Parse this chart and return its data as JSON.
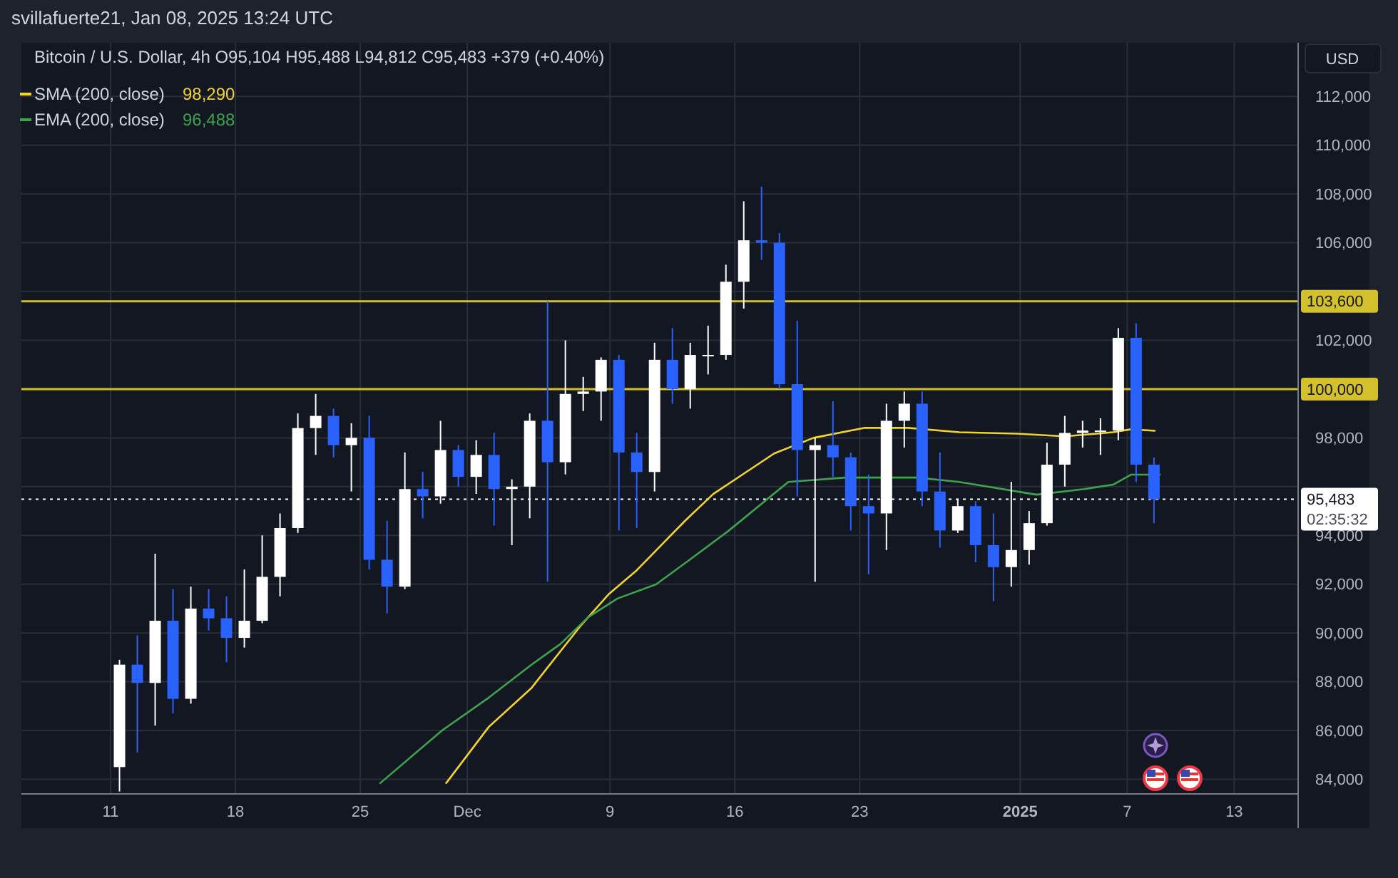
{
  "chart_data": {
    "type": "candlestick",
    "title": "Bitcoin / U.S. Dollar, 4h  O95,104  H95,488  L94,812  C95,483  +379 (+0.40%)",
    "ylabel": "USD",
    "annotations": [
      "svillafuerte21, Jan 08, 2025 13:24 UTC",
      "02:35:32",
      "98,290",
      "96,488"
    ],
    "x": [
      "2024-11-11T12:00",
      "2024-11-12T12:00",
      "2024-11-13T12:00",
      "2024-11-14T12:00",
      "2024-11-15T12:00",
      "2024-11-16T12:00",
      "2024-11-17T12:00",
      "2024-11-18T12:00",
      "2024-11-19T12:00",
      "2024-11-20T12:00",
      "2024-11-21T12:00",
      "2024-11-22T12:00",
      "2024-11-23T12:00",
      "2024-11-24T12:00",
      "2024-11-25T12:00",
      "2024-11-26T12:00",
      "2024-11-27T12:00",
      "2024-11-28T12:00",
      "2024-11-29T12:00",
      "2024-11-30T12:00",
      "2024-12-01T12:00",
      "2024-12-02T12:00",
      "2024-12-03T12:00",
      "2024-12-04T12:00",
      "2024-12-05T12:00",
      "2024-12-06T12:00",
      "2024-12-07T12:00",
      "2024-12-08T12:00",
      "2024-12-09T12:00",
      "2024-12-10T12:00",
      "2024-12-11T12:00",
      "2024-12-12T12:00",
      "2024-12-13T12:00",
      "2024-12-14T12:00",
      "2024-12-15T12:00",
      "2024-12-16T12:00",
      "2024-12-17T12:00",
      "2024-12-18T12:00",
      "2024-12-19T12:00",
      "2024-12-20T12:00",
      "2024-12-21T12:00",
      "2024-12-22T12:00",
      "2024-12-23T12:00",
      "2024-12-24T12:00",
      "2024-12-25T12:00",
      "2024-12-26T12:00",
      "2024-12-27T12:00",
      "2024-12-28T12:00",
      "2024-12-29T12:00",
      "2024-12-30T12:00",
      "2024-12-31T12:00",
      "2025-01-01T12:00",
      "2025-01-02T12:00",
      "2025-01-03T12:00",
      "2025-01-04T12:00",
      "2025-01-05T12:00",
      "2025-01-06T12:00",
      "2025-01-07T12:00",
      "2025-01-08T12:00"
    ],
    "ohlc": [
      [
        84500,
        88900,
        83500,
        88700
      ],
      [
        88700,
        89900,
        85100,
        87950
      ],
      [
        87950,
        93250,
        86200,
        90500
      ],
      [
        90500,
        91800,
        86700,
        87300
      ],
      [
        87300,
        91900,
        87100,
        91000
      ],
      [
        91000,
        91800,
        90100,
        90600
      ],
      [
        90600,
        91500,
        88800,
        89800
      ],
      [
        89800,
        92600,
        89400,
        90500
      ],
      [
        90500,
        94000,
        90400,
        92300
      ],
      [
        92300,
        94900,
        91500,
        94300
      ],
      [
        94300,
        99000,
        94100,
        98400
      ],
      [
        98400,
        99800,
        97300,
        98900
      ],
      [
        98900,
        99200,
        97200,
        97700
      ],
      [
        97700,
        98600,
        95800,
        98000
      ],
      [
        98000,
        98900,
        92600,
        93000
      ],
      [
        93000,
        94600,
        90800,
        91900
      ],
      [
        91900,
        97400,
        91800,
        95900
      ],
      [
        95900,
        96600,
        94700,
        95600
      ],
      [
        95600,
        98700,
        95300,
        97500
      ],
      [
        97500,
        97700,
        96000,
        96400
      ],
      [
        96400,
        97900,
        95700,
        97300
      ],
      [
        97300,
        98200,
        94400,
        95900
      ],
      [
        95900,
        96300,
        93600,
        96000
      ],
      [
        96000,
        99000,
        94700,
        98700
      ],
      [
        98700,
        103600,
        92100,
        97000
      ],
      [
        97000,
        102000,
        96500,
        99800
      ],
      [
        99800,
        100500,
        99100,
        99900
      ],
      [
        99900,
        101300,
        98700,
        101200
      ],
      [
        101200,
        101400,
        94200,
        97400
      ],
      [
        97400,
        98200,
        94300,
        96600
      ],
      [
        96600,
        101900,
        95800,
        101200
      ],
      [
        101200,
        102500,
        99400,
        100000
      ],
      [
        100000,
        101900,
        99200,
        101400
      ],
      [
        101400,
        102600,
        100600,
        101400
      ],
      [
        101400,
        105100,
        101200,
        104400
      ],
      [
        104400,
        107700,
        103300,
        106100
      ],
      [
        106100,
        108300,
        105300,
        106000
      ],
      [
        106000,
        106400,
        100000,
        100200
      ],
      [
        100200,
        102800,
        95600,
        97500
      ],
      [
        97500,
        98000,
        92100,
        97700
      ],
      [
        97700,
        99500,
        96400,
        97200
      ],
      [
        97200,
        97400,
        94200,
        95200
      ],
      [
        95200,
        96500,
        92400,
        94900
      ],
      [
        94900,
        99400,
        93400,
        98700
      ],
      [
        98700,
        99900,
        97600,
        99400
      ],
      [
        99400,
        99900,
        95200,
        95800
      ],
      [
        95800,
        97400,
        93500,
        94200
      ],
      [
        94200,
        95500,
        94100,
        95200
      ],
      [
        95200,
        95400,
        92900,
        93600
      ],
      [
        93600,
        94900,
        91300,
        92700
      ],
      [
        92700,
        96200,
        91900,
        93400
      ],
      [
        93400,
        95000,
        92800,
        94500
      ],
      [
        94500,
        97800,
        94400,
        96900
      ],
      [
        96900,
        98900,
        96000,
        98200
      ],
      [
        98200,
        98700,
        97600,
        98300
      ],
      [
        98300,
        98800,
        97300,
        98300
      ],
      [
        98300,
        102500,
        97900,
        102100
      ],
      [
        102100,
        102700,
        96200,
        96900
      ],
      [
        96900,
        97200,
        94500,
        95483
      ]
    ],
    "series": [
      {
        "name": "SMA (200, close)",
        "type": "line",
        "color": "#f2d22e",
        "x": [
          "2024-11-29T19:00",
          "2024-12-02T05:00",
          "2024-12-04T14:00",
          "2024-12-07T07:00",
          "2024-12-08T22:00",
          "2024-12-10T12:00",
          "2024-12-13T05:00",
          "2024-12-14T19:00",
          "2024-12-18T05:00",
          "2024-12-20T10:00",
          "2024-12-23T07:00",
          "2024-12-25T17:00",
          "2024-12-28T14:00",
          "2024-12-31T19:00",
          "2025-01-03T12:00",
          "2025-01-06T05:00",
          "2025-01-07T05:00",
          "2025-01-08T14:00"
        ],
        "values": [
          83820,
          86150,
          87730,
          90240,
          91580,
          92570,
          94600,
          95700,
          97360,
          98000,
          98410,
          98410,
          98230,
          98170,
          98060,
          98230,
          98350,
          98290
        ]
      },
      {
        "name": "EMA (200, close)",
        "type": "line",
        "color": "#3fa34d",
        "x": [
          "2024-11-26T02:00",
          "2024-11-29T14:00",
          "2024-12-02T05:00",
          "2024-12-04T14:00",
          "2024-12-06T05:00",
          "2024-12-07T19:00",
          "2024-12-09T10:00",
          "2024-12-11T14:00",
          "2024-12-13T05:00",
          "2024-12-15T14:00",
          "2024-12-19T00:00",
          "2024-12-22T05:00",
          "2024-12-26T05:00",
          "2024-12-28T14:00",
          "2025-01-01T22:00",
          "2025-01-04T14:00",
          "2025-01-06T05:00",
          "2025-01-07T05:00",
          "2025-01-08T21:00"
        ],
        "values": [
          83820,
          86000,
          87350,
          88690,
          89540,
          90650,
          91410,
          91990,
          92860,
          94150,
          96190,
          96370,
          96370,
          96190,
          95670,
          95900,
          96080,
          96490,
          96490
        ]
      }
    ],
    "xlim": [
      "2024-11-06T00:00",
      "2025-01-16T14:00"
    ],
    "xticks": [
      {
        "value": "2024-11-11",
        "label": "11"
      },
      {
        "value": "2024-11-18",
        "label": "18"
      },
      {
        "value": "2024-11-25",
        "label": "25"
      },
      {
        "value": "2024-12-01",
        "label": "Dec"
      },
      {
        "value": "2024-12-09",
        "label": "9"
      },
      {
        "value": "2024-12-16",
        "label": "16"
      },
      {
        "value": "2024-12-23",
        "label": "23"
      },
      {
        "value": "2025-01-01",
        "label": "2025"
      },
      {
        "value": "2025-01-07",
        "label": "7"
      },
      {
        "value": "2025-01-13",
        "label": "13"
      }
    ],
    "ylim": [
      83400,
      114200
    ],
    "yticks": [
      {
        "value": 84000,
        "label": "84,000"
      },
      {
        "value": 86000,
        "label": "86,000"
      },
      {
        "value": 88000,
        "label": "88,000"
      },
      {
        "value": 90000,
        "label": "90,000"
      },
      {
        "value": 92000,
        "label": "92,000"
      },
      {
        "value": 94000,
        "label": "94,000"
      },
      {
        "value": 96000,
        "label": null
      },
      {
        "value": 98000,
        "label": "98,000"
      },
      {
        "value": 100000,
        "label": null
      },
      {
        "value": 102000,
        "label": "102,000"
      },
      {
        "value": 104000,
        "label": null
      },
      {
        "value": 106000,
        "label": "106,000"
      },
      {
        "value": 108000,
        "label": "108,000"
      },
      {
        "value": 110000,
        "label": "110,000"
      },
      {
        "value": 112000,
        "label": "112,000"
      }
    ],
    "ref_lines": [
      {
        "axis": "y",
        "value": 103600,
        "label": "103,600",
        "color": "#d4c02a",
        "line_style": "solid"
      },
      {
        "axis": "y",
        "value": 100000,
        "label": "100,000",
        "color": "#d4c02a",
        "line_style": "solid"
      },
      {
        "axis": "y",
        "value": 95483,
        "label": "95,483",
        "color": "#ffffff",
        "line_style": "dotted"
      }
    ],
    "grid": true,
    "legend": "top left"
  }
}
